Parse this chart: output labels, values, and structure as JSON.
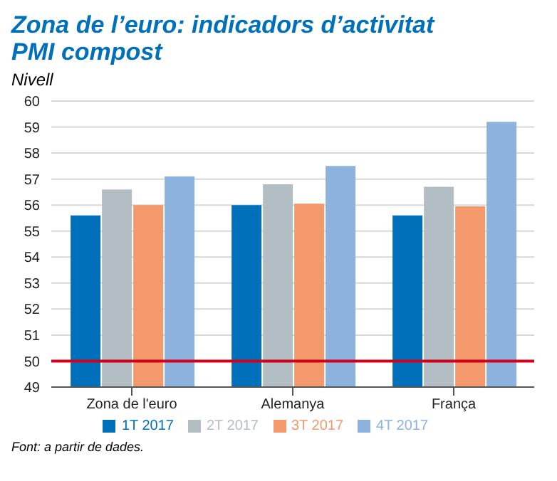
{
  "chart_data": {
    "type": "bar",
    "title": "Zona de l’euro: indicadors d’activitat",
    "subtitle": "PMI compost",
    "ylabel": "Nivell",
    "categories": [
      "Zona de l'euro",
      "Alemanya",
      "França"
    ],
    "series": [
      {
        "name": "1T 2017",
        "color": "#0070ba",
        "values": [
          55.6,
          56.0,
          55.6
        ]
      },
      {
        "name": "2T 2017",
        "color": "#b3bec4",
        "values": [
          56.6,
          56.8,
          56.7
        ]
      },
      {
        "name": "3T 2017",
        "color": "#f4996b",
        "values": [
          56.0,
          56.05,
          55.95
        ]
      },
      {
        "name": "4T 2017",
        "color": "#8db2de",
        "values": [
          57.1,
          57.5,
          59.2
        ]
      }
    ],
    "ylim": [
      49,
      60
    ],
    "yticks": [
      49,
      50,
      51,
      52,
      53,
      54,
      55,
      56,
      57,
      58,
      59,
      60
    ],
    "grid": "y",
    "legend": "bottom",
    "ref_lines": [
      {
        "axis": "y",
        "value": 50,
        "color": "#d0021b"
      }
    ],
    "annotations": [
      "Font: a partir de dades."
    ]
  }
}
